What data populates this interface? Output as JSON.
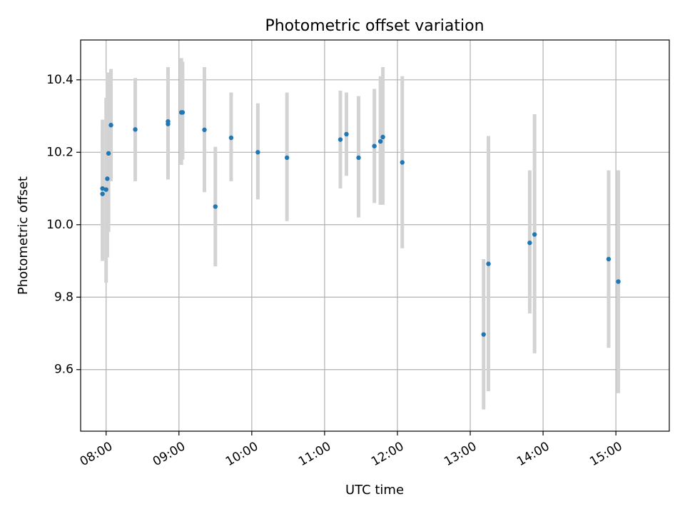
{
  "chart_data": {
    "type": "scatter",
    "title": "Photometric offset variation",
    "xlabel": "UTC time",
    "ylabel": "Photometric offset",
    "x_unit": "UTC time (HH:MM)",
    "xlim": [
      "07:39",
      "15:44"
    ],
    "ylim": [
      9.43,
      10.51
    ],
    "x_ticks": [
      "08:00",
      "09:00",
      "10:00",
      "11:00",
      "12:00",
      "13:00",
      "14:00",
      "15:00"
    ],
    "y_ticks": [
      9.6,
      9.8,
      10.0,
      10.2,
      10.4
    ],
    "y_tick_labels": [
      "9.6",
      "9.8",
      "10.0",
      "10.2",
      "10.4"
    ],
    "grid": true,
    "colors": {
      "points": "#1f77b4",
      "error_bars": "#d3d3d3",
      "grid": "#b0b0b0"
    },
    "series": [
      {
        "points": [
          {
            "x": "07:57",
            "y": 10.085,
            "lo": 9.9,
            "hi": 10.29
          },
          {
            "x": "07:57",
            "y": 10.1,
            "lo": 9.91,
            "hi": 10.27
          },
          {
            "x": "08:00",
            "y": 10.097,
            "lo": 9.84,
            "hi": 10.35
          },
          {
            "x": "08:01",
            "y": 10.127,
            "lo": 9.91,
            "hi": 10.42
          },
          {
            "x": "08:02",
            "y": 10.197,
            "lo": 9.98,
            "hi": 10.42
          },
          {
            "x": "08:04",
            "y": 10.275,
            "lo": 10.12,
            "hi": 10.43
          },
          {
            "x": "08:24",
            "y": 10.263,
            "lo": 10.12,
            "hi": 10.405
          },
          {
            "x": "08:51",
            "y": 10.278,
            "lo": 10.125,
            "hi": 10.435
          },
          {
            "x": "08:51",
            "y": 10.285,
            "lo": 10.13,
            "hi": 10.43
          },
          {
            "x": "09:02",
            "y": 10.31,
            "lo": 10.165,
            "hi": 10.46
          },
          {
            "x": "09:03",
            "y": 10.31,
            "lo": 10.18,
            "hi": 10.45
          },
          {
            "x": "09:21",
            "y": 10.262,
            "lo": 10.09,
            "hi": 10.435
          },
          {
            "x": "09:30",
            "y": 10.05,
            "lo": 9.885,
            "hi": 10.215
          },
          {
            "x": "09:43",
            "y": 10.24,
            "lo": 10.12,
            "hi": 10.365
          },
          {
            "x": "10:05",
            "y": 10.2,
            "lo": 10.07,
            "hi": 10.335
          },
          {
            "x": "10:29",
            "y": 10.185,
            "lo": 10.01,
            "hi": 10.365
          },
          {
            "x": "11:13",
            "y": 10.235,
            "lo": 10.1,
            "hi": 10.37
          },
          {
            "x": "11:18",
            "y": 10.25,
            "lo": 10.135,
            "hi": 10.365
          },
          {
            "x": "11:28",
            "y": 10.185,
            "lo": 10.02,
            "hi": 10.355
          },
          {
            "x": "11:41",
            "y": 10.217,
            "lo": 10.06,
            "hi": 10.375
          },
          {
            "x": "11:46",
            "y": 10.23,
            "lo": 10.055,
            "hi": 10.41
          },
          {
            "x": "11:48",
            "y": 10.242,
            "lo": 10.055,
            "hi": 10.435
          },
          {
            "x": "12:04",
            "y": 10.172,
            "lo": 9.935,
            "hi": 10.41
          },
          {
            "x": "13:11",
            "y": 9.697,
            "lo": 9.49,
            "hi": 9.905
          },
          {
            "x": "13:15",
            "y": 9.892,
            "lo": 9.54,
            "hi": 10.245
          },
          {
            "x": "13:49",
            "y": 9.95,
            "lo": 9.755,
            "hi": 10.15
          },
          {
            "x": "13:53",
            "y": 9.973,
            "lo": 9.645,
            "hi": 10.305
          },
          {
            "x": "14:54",
            "y": 9.905,
            "lo": 9.66,
            "hi": 10.15
          },
          {
            "x": "15:02",
            "y": 9.843,
            "lo": 9.535,
            "hi": 10.15
          }
        ]
      }
    ]
  }
}
